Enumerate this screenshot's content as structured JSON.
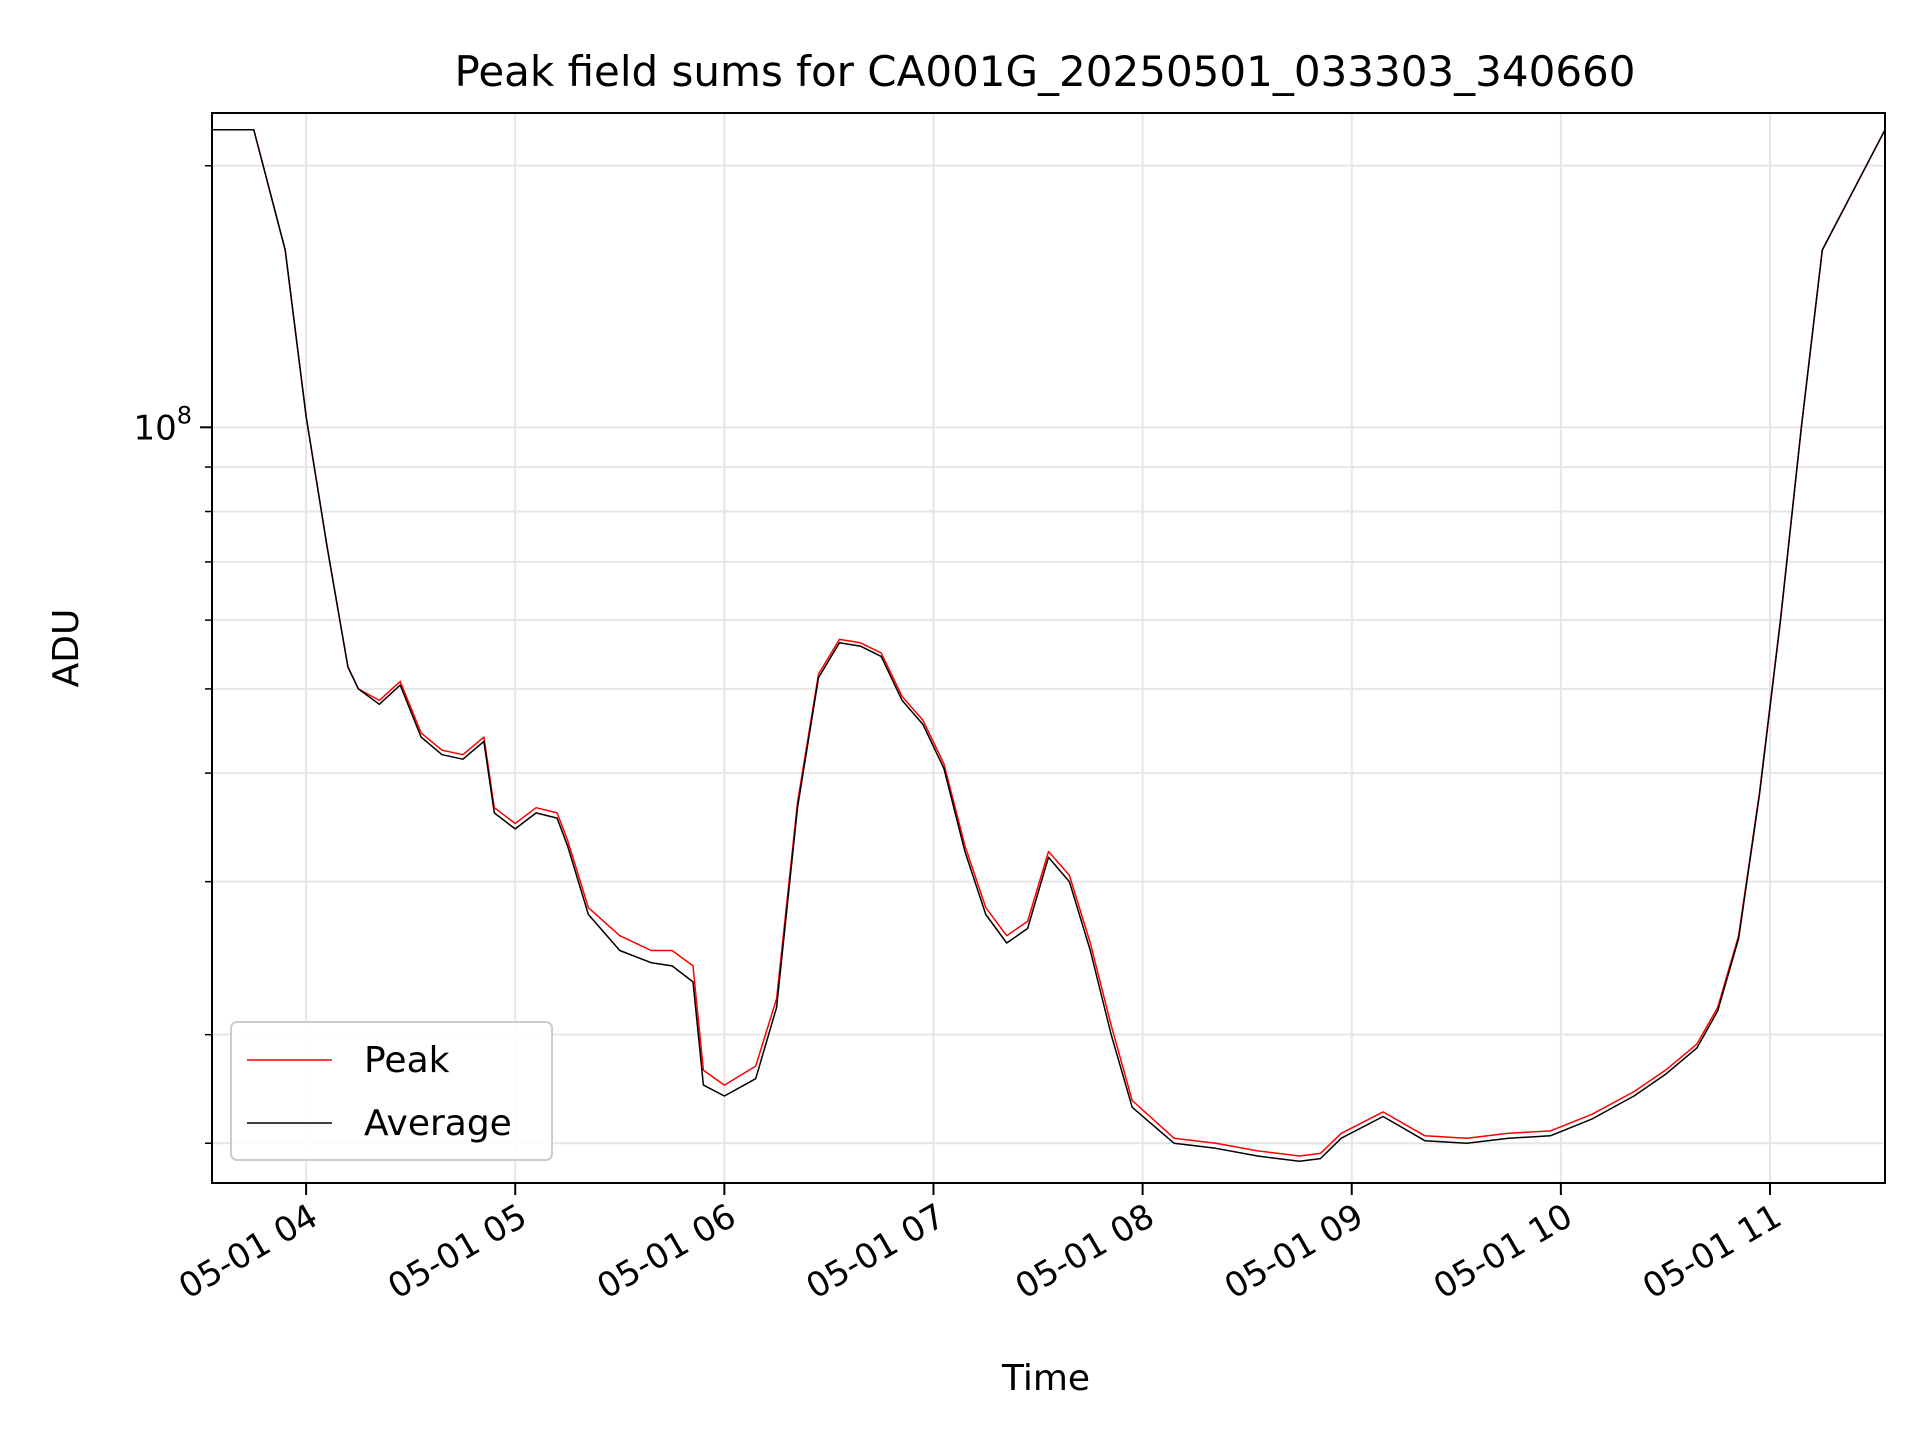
{
  "chart_data": {
    "type": "line",
    "title": "Peak field sums for CA001G_20250501_033303_340660",
    "xlabel": "Time",
    "ylabel": "ADU",
    "x_range": [
      "2025-05-01T03:33",
      "2025-05-01T11:33"
    ],
    "y_range": [
      13500000,
      230000000
    ],
    "y_scale": "log",
    "grid": true,
    "legend_position": "lower-left",
    "x_ticks": [
      "2025-05-01T04:00",
      "2025-05-01T05:00",
      "2025-05-01T06:00",
      "2025-05-01T07:00",
      "2025-05-01T08:00",
      "2025-05-01T09:00",
      "2025-05-01T10:00",
      "2025-05-01T11:00"
    ],
    "x_tick_labels": [
      "05-01 04",
      "05-01 05",
      "05-01 06",
      "05-01 07",
      "05-01 08",
      "05-01 09",
      "05-01 10",
      "05-01 11"
    ],
    "y_major_ticks": [
      {
        "value": 100000000,
        "base": "10",
        "exp": "8"
      }
    ],
    "y_minor_ticks": [
      15000000,
      20000000,
      30000000,
      40000000,
      50000000,
      60000000,
      70000000,
      80000000,
      90000000,
      200000000
    ],
    "x": [
      "2025-05-01T03:33",
      "2025-05-01T03:45",
      "2025-05-01T03:54",
      "2025-05-01T04:00",
      "2025-05-01T04:06",
      "2025-05-01T04:12",
      "2025-05-01T04:15",
      "2025-05-01T04:21",
      "2025-05-01T04:27",
      "2025-05-01T04:33",
      "2025-05-01T04:39",
      "2025-05-01T04:45",
      "2025-05-01T04:51",
      "2025-05-01T04:54",
      "2025-05-01T05:00",
      "2025-05-01T05:06",
      "2025-05-01T05:12",
      "2025-05-01T05:15",
      "2025-05-01T05:21",
      "2025-05-01T05:30",
      "2025-05-01T05:39",
      "2025-05-01T05:45",
      "2025-05-01T05:51",
      "2025-05-01T05:54",
      "2025-05-01T06:00",
      "2025-05-01T06:09",
      "2025-05-01T06:15",
      "2025-05-01T06:21",
      "2025-05-01T06:27",
      "2025-05-01T06:33",
      "2025-05-01T06:39",
      "2025-05-01T06:45",
      "2025-05-01T06:51",
      "2025-05-01T06:57",
      "2025-05-01T07:03",
      "2025-05-01T07:09",
      "2025-05-01T07:15",
      "2025-05-01T07:21",
      "2025-05-01T07:27",
      "2025-05-01T07:33",
      "2025-05-01T07:39",
      "2025-05-01T07:45",
      "2025-05-01T07:51",
      "2025-05-01T07:57",
      "2025-05-01T08:09",
      "2025-05-01T08:21",
      "2025-05-01T08:33",
      "2025-05-01T08:45",
      "2025-05-01T08:51",
      "2025-05-01T08:57",
      "2025-05-01T09:09",
      "2025-05-01T09:21",
      "2025-05-01T09:33",
      "2025-05-01T09:45",
      "2025-05-01T09:57",
      "2025-05-01T10:09",
      "2025-05-01T10:21",
      "2025-05-01T10:30",
      "2025-05-01T10:39",
      "2025-05-01T10:45",
      "2025-05-01T10:51",
      "2025-05-01T10:57",
      "2025-05-01T11:03",
      "2025-05-01T11:09",
      "2025-05-01T11:15",
      "2025-05-01T11:33"
    ],
    "series": [
      {
        "name": "Peak",
        "color": "#ff0000",
        "values": [
          220000000,
          220000000,
          160000000,
          103000000,
          73000000,
          53000000,
          50000000,
          48500000,
          51000000,
          44500000,
          42500000,
          42000000,
          44000000,
          36500000,
          35000000,
          36500000,
          36000000,
          33500000,
          28000000,
          26000000,
          25000000,
          25000000,
          24000000,
          18200000,
          17500000,
          18400000,
          22000000,
          37000000,
          52000000,
          57000000,
          56500000,
          55000000,
          49000000,
          46000000,
          41000000,
          33000000,
          28000000,
          26000000,
          27000000,
          32500000,
          30500000,
          25500000,
          20500000,
          16800000,
          15200000,
          15000000,
          14700000,
          14500000,
          14600000,
          15400000,
          16300000,
          15300000,
          15200000,
          15400000,
          15500000,
          16200000,
          17200000,
          18200000,
          19500000,
          21500000,
          26000000,
          38000000,
          60000000,
          100000000,
          160000000,
          220000000
        ]
      },
      {
        "name": "Average",
        "color": "#000000",
        "values": [
          220000000,
          220000000,
          160000000,
          103000000,
          73000000,
          53000000,
          50000000,
          48000000,
          50500000,
          44000000,
          42000000,
          41500000,
          43500000,
          36000000,
          34500000,
          36000000,
          35500000,
          33000000,
          27500000,
          25000000,
          24200000,
          24000000,
          23000000,
          17500000,
          17000000,
          17800000,
          21500000,
          36500000,
          51500000,
          56500000,
          56000000,
          54500000,
          48500000,
          45500000,
          40500000,
          32500000,
          27500000,
          25500000,
          26500000,
          32000000,
          30000000,
          25000000,
          20000000,
          16500000,
          15000000,
          14800000,
          14500000,
          14300000,
          14400000,
          15200000,
          16100000,
          15100000,
          15000000,
          15200000,
          15300000,
          16000000,
          17000000,
          18000000,
          19300000,
          21300000,
          25800000,
          37800000,
          59800000,
          99800000,
          160000000,
          220000000
        ]
      }
    ]
  }
}
